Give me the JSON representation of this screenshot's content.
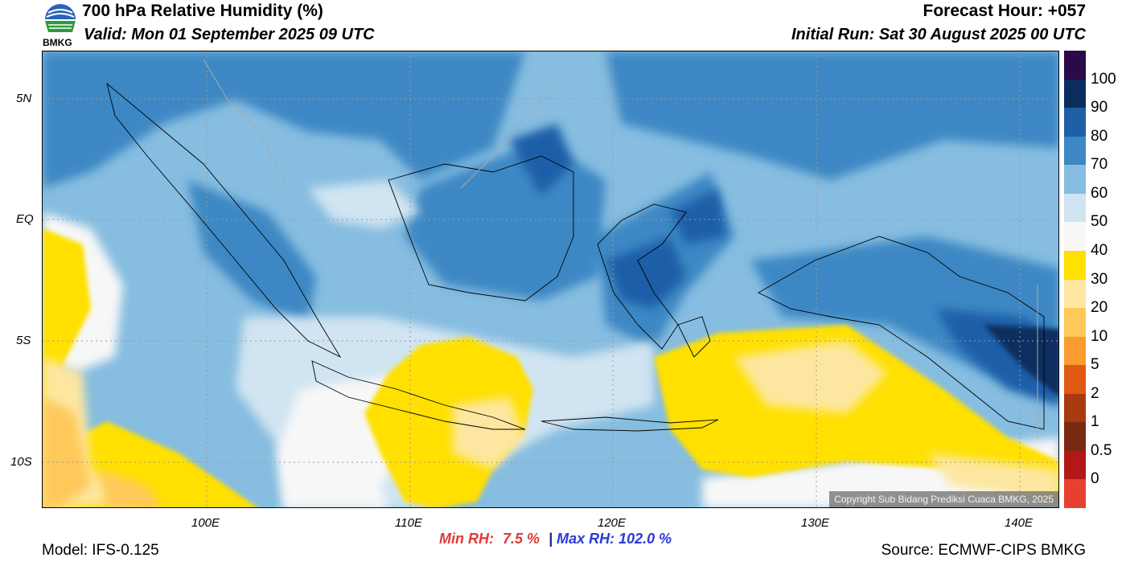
{
  "header": {
    "title": "700 hPa Relative Humidity (%)",
    "valid": "Valid: Mon 01 September 2025 09 UTC",
    "forecast_hour": "Forecast Hour: +057",
    "initial_run": "Initial Run: Sat 30 August 2025 00 UTC",
    "logo_text": "BMKG"
  },
  "axes": {
    "lat_ticks": [
      "5N",
      "EQ",
      "5S",
      "10S"
    ],
    "lon_ticks": [
      "100E",
      "110E",
      "120E",
      "130E",
      "140E"
    ]
  },
  "stats": {
    "min_label": "Min RH:",
    "min_value": "7.5 %",
    "separator": "|",
    "max_label": "Max RH:",
    "max_value": "102.0 %"
  },
  "footer": {
    "model": "Model: IFS-0.125",
    "source": "Source: ECMWF-CIPS BMKG",
    "copyright": "Copyright Sub Bidang Prediksi Cuaca BMKG, 2025"
  },
  "colorbar": {
    "labels": [
      "100",
      "90",
      "80",
      "70",
      "60",
      "50",
      "40",
      "30",
      "20",
      "10",
      "5",
      "2",
      "1",
      "0.5",
      "0"
    ],
    "colors": [
      "#2a0a4a",
      "#0b2d5e",
      "#1f5fa8",
      "#3d88c4",
      "#86bde0",
      "#d0e4f1",
      "#f7f7f7",
      "#ffe000",
      "#fde7a0",
      "#ffc85a",
      "#fb9b30",
      "#e05a12",
      "#a83a10",
      "#7a2a10",
      "#b31818",
      "#e84030"
    ]
  },
  "map_colors": {
    "ocean_base": "#86bde0",
    "moist": "#3d88c4",
    "very_moist": "#1f5fa8",
    "dry_yellow": "#ffe000",
    "dry_light": "#fde7a0",
    "dry_orange": "#ffc85a",
    "neutral": "#f7f7f7",
    "pale_blue": "#d0e4f1"
  }
}
